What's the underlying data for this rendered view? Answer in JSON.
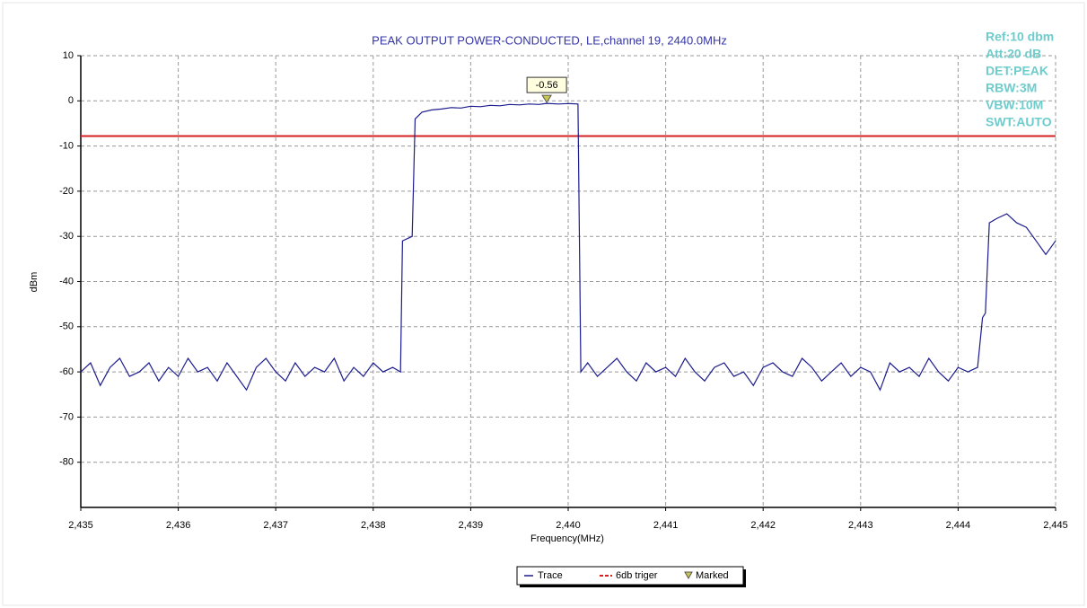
{
  "chart_data": {
    "type": "line",
    "title": "PEAK OUTPUT POWER-CONDUCTED, LE,channel 19, 2440.0MHz",
    "xlabel": "Frequency(MHz)",
    "ylabel": "dBm",
    "info": [
      "Ref:10 dbm",
      "Att:20 dB",
      "DET:PEAK",
      "RBW:3M",
      "VBW:10M",
      "SWT:AUTO"
    ],
    "xlim": [
      2435,
      2445
    ],
    "ylim": [
      -90,
      10
    ],
    "xticks": [
      {
        "value": 2435,
        "label": "2,435"
      },
      {
        "value": 2436,
        "label": "2,436"
      },
      {
        "value": 2437,
        "label": "2,437"
      },
      {
        "value": 2438,
        "label": "2,438"
      },
      {
        "value": 2439,
        "label": "2,439"
      },
      {
        "value": 2440,
        "label": "2,440"
      },
      {
        "value": 2441,
        "label": "2,441"
      },
      {
        "value": 2442,
        "label": "2,442"
      },
      {
        "value": 2443,
        "label": "2,443"
      },
      {
        "value": 2444,
        "label": "2,444"
      },
      {
        "value": 2445,
        "label": "2,445"
      }
    ],
    "yticks": [
      10,
      0,
      -10,
      -20,
      -30,
      -40,
      -50,
      -60,
      -70,
      -80
    ],
    "grid": true,
    "x": [
      2435.0,
      2435.1,
      2435.2,
      2435.3,
      2435.4,
      2435.5,
      2435.6,
      2435.7,
      2435.8,
      2435.9,
      2436.0,
      2436.1,
      2436.2,
      2436.3,
      2436.4,
      2436.5,
      2436.6,
      2436.7,
      2436.8,
      2436.9,
      2437.0,
      2437.1,
      2437.2,
      2437.3,
      2437.4,
      2437.5,
      2437.6,
      2437.7,
      2437.8,
      2437.9,
      2438.0,
      2438.1,
      2438.2,
      2438.28,
      2438.3,
      2438.4,
      2438.43,
      2438.5,
      2438.6,
      2438.7,
      2438.8,
      2438.9,
      2439.0,
      2439.1,
      2439.2,
      2439.3,
      2439.4,
      2439.5,
      2439.6,
      2439.7,
      2439.78,
      2439.9,
      2440.0,
      2440.1,
      2440.13,
      2440.2,
      2440.3,
      2440.4,
      2440.5,
      2440.6,
      2440.7,
      2440.8,
      2440.9,
      2441.0,
      2441.1,
      2441.2,
      2441.3,
      2441.4,
      2441.5,
      2441.6,
      2441.7,
      2441.8,
      2441.9,
      2442.0,
      2442.1,
      2442.2,
      2442.3,
      2442.4,
      2442.5,
      2442.6,
      2442.7,
      2442.8,
      2442.9,
      2443.0,
      2443.1,
      2443.2,
      2443.3,
      2443.4,
      2443.5,
      2443.6,
      2443.7,
      2443.8,
      2443.9,
      2444.0,
      2444.1,
      2444.2,
      2444.25,
      2444.28,
      2444.32,
      2444.4,
      2444.5,
      2444.6,
      2444.7,
      2444.8,
      2444.9,
      2445.0
    ],
    "series": [
      {
        "name": "Trace",
        "color": "#1c1c8e",
        "values": [
          -60,
          -58,
          -63,
          -59,
          -57,
          -61,
          -60,
          -58,
          -62,
          -59,
          -61,
          -57,
          -60,
          -59,
          -62,
          -58,
          -61,
          -64,
          -59,
          -57,
          -60,
          -62,
          -58,
          -61,
          -59,
          -60,
          -57,
          -62,
          -59,
          -61,
          -58,
          -60,
          -59,
          -60,
          -31,
          -30,
          -4,
          -2.5,
          -2,
          -1.8,
          -1.5,
          -1.6,
          -1.2,
          -1.3,
          -1.0,
          -1.1,
          -0.8,
          -0.9,
          -0.7,
          -0.8,
          -0.56,
          -0.7,
          -0.6,
          -0.7,
          -60,
          -58,
          -61,
          -59,
          -57,
          -60,
          -62,
          -58,
          -60,
          -59,
          -61,
          -57,
          -60,
          -62,
          -59,
          -58,
          -61,
          -60,
          -63,
          -59,
          -58,
          -60,
          -61,
          -57,
          -59,
          -62,
          -60,
          -58,
          -61,
          -59,
          -60,
          -64,
          -58,
          -60,
          -59,
          -61,
          -57,
          -60,
          -62,
          -59,
          -60,
          -59,
          -48,
          -47,
          -27,
          -26,
          -25,
          -27,
          -28,
          -31,
          -34,
          -31
        ]
      }
    ],
    "threshold": {
      "name": "6db triger",
      "value": -7.8,
      "color": "#d42020"
    },
    "marker": {
      "name": "Marked",
      "x": 2439.78,
      "value": -0.56,
      "color": "#c8c850"
    }
  }
}
